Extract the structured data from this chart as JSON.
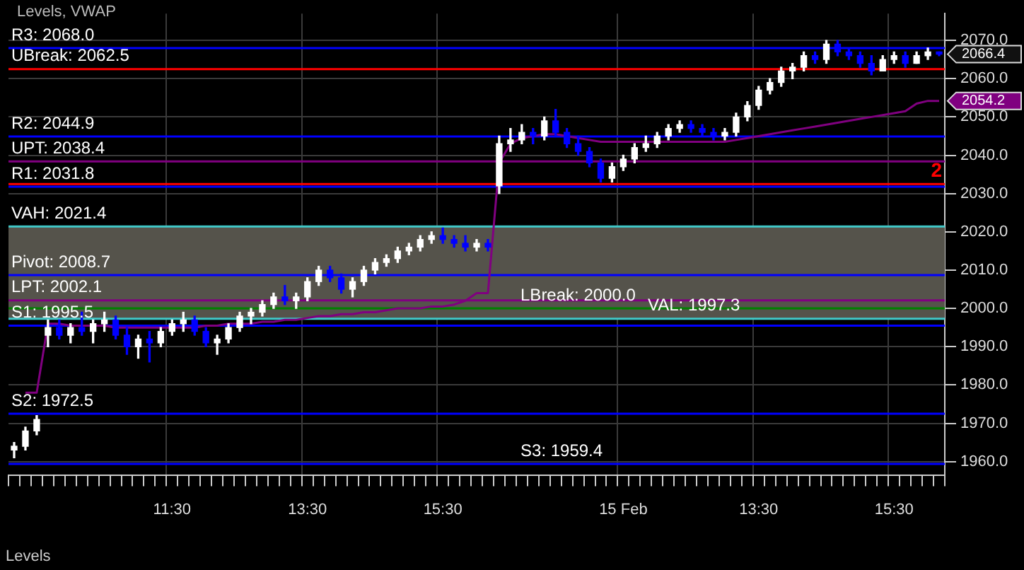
{
  "chart_data": {
    "type": "candlestick",
    "title": "Levels, VWAP",
    "categories": [
      null,
      null,
      null,
      null,
      null,
      null,
      null,
      null,
      null,
      null,
      null,
      null,
      null,
      null,
      "11:30",
      null,
      null,
      null,
      null,
      null,
      null,
      null,
      null,
      null,
      null,
      null,
      "13:30",
      null,
      null,
      null,
      null,
      null,
      null,
      null,
      null,
      null,
      null,
      null,
      "15:30",
      null,
      null,
      null,
      null,
      null,
      null,
      null,
      null,
      null,
      null,
      null,
      null,
      null,
      null,
      null,
      "15 Feb",
      null,
      null,
      null,
      null,
      null,
      null,
      null,
      null,
      null,
      null,
      null,
      "13:30",
      null,
      null,
      null,
      null,
      null,
      null,
      null,
      null,
      null,
      null,
      null,
      "15:30",
      null,
      null,
      null,
      null
    ],
    "ohlc": [
      [
        1963,
        1965,
        1961,
        1964
      ],
      [
        1964,
        1969,
        1963,
        1968
      ],
      [
        1968,
        1972,
        1967,
        1971
      ],
      [
        1993,
        1997,
        1990,
        1995
      ],
      [
        1995,
        1997,
        1992,
        1993
      ],
      [
        1993,
        1996,
        1991,
        1995
      ],
      [
        1995,
        1999,
        1993,
        1994
      ],
      [
        1994,
        1997,
        1991,
        1996
      ],
      [
        1996,
        1999,
        1994,
        1997
      ],
      [
        1997,
        1998,
        1992,
        1993
      ],
      [
        1993,
        1995,
        1988,
        1990
      ],
      [
        1990,
        1993,
        1987,
        1992
      ],
      [
        1992,
        1994,
        1986,
        1991
      ],
      [
        1991,
        1995,
        1990,
        1994
      ],
      [
        1994,
        1997,
        1993,
        1996
      ],
      [
        1996,
        1999,
        1994,
        1997
      ],
      [
        1997,
        1998,
        1993,
        1994
      ],
      [
        1994,
        1995,
        1990,
        1991
      ],
      [
        1991,
        1993,
        1988,
        1992
      ],
      [
        1992,
        1996,
        1991,
        1995
      ],
      [
        1995,
        1999,
        1994,
        1998
      ],
      [
        1998,
        2000,
        1996,
        1999
      ],
      [
        1999,
        2002,
        1998,
        2001
      ],
      [
        2001,
        2004,
        2000,
        2003
      ],
      [
        2003,
        2006,
        2001,
        2002
      ],
      [
        2002,
        2004,
        2000,
        2003
      ],
      [
        2003,
        2008,
        2002,
        2007
      ],
      [
        2007,
        2011,
        2006,
        2010
      ],
      [
        2010,
        2011,
        2007,
        2008
      ],
      [
        2008,
        2009,
        2004,
        2005
      ],
      [
        2005,
        2008,
        2003,
        2007
      ],
      [
        2007,
        2011,
        2006,
        2010
      ],
      [
        2010,
        2013,
        2009,
        2012
      ],
      [
        2012,
        2014,
        2011,
        2013
      ],
      [
        2013,
        2016,
        2012,
        2015
      ],
      [
        2015,
        2017,
        2014,
        2016
      ],
      [
        2016,
        2019,
        2015,
        2018
      ],
      [
        2018,
        2020,
        2017,
        2019
      ],
      [
        2019,
        2021,
        2017,
        2018
      ],
      [
        2018,
        2019,
        2016,
        2017
      ],
      [
        2017,
        2019,
        2015,
        2016
      ],
      [
        2016,
        2018,
        2015,
        2017
      ],
      [
        2017,
        2018,
        2015,
        2016
      ],
      [
        2032,
        2045,
        2030,
        2043
      ],
      [
        2043,
        2047,
        2041,
        2044
      ],
      [
        2044,
        2048,
        2043,
        2046
      ],
      [
        2046,
        2047,
        2043,
        2045
      ],
      [
        2045,
        2050,
        2044,
        2049
      ],
      [
        2049,
        2052,
        2045,
        2046
      ],
      [
        2046,
        2047,
        2042,
        2043
      ],
      [
        2043,
        2045,
        2040,
        2041
      ],
      [
        2041,
        2042,
        2037,
        2038
      ],
      [
        2038,
        2039,
        2033,
        2034
      ],
      [
        2034,
        2038,
        2033,
        2037
      ],
      [
        2037,
        2040,
        2036,
        2039
      ],
      [
        2039,
        2043,
        2038,
        2042
      ],
      [
        2042,
        2045,
        2041,
        2043
      ],
      [
        2043,
        2046,
        2042,
        2045
      ],
      [
        2045,
        2048,
        2044,
        2047
      ],
      [
        2047,
        2049,
        2046,
        2048
      ],
      [
        2048,
        2049,
        2046,
        2047
      ],
      [
        2047,
        2048,
        2045,
        2046
      ],
      [
        2046,
        2047,
        2044,
        2045
      ],
      [
        2045,
        2047,
        2044,
        2046
      ],
      [
        2046,
        2051,
        2045,
        2050
      ],
      [
        2050,
        2054,
        2049,
        2053
      ],
      [
        2053,
        2058,
        2052,
        2057
      ],
      [
        2057,
        2060,
        2056,
        2059
      ],
      [
        2059,
        2063,
        2058,
        2062
      ],
      [
        2062,
        2064,
        2060,
        2063
      ],
      [
        2063,
        2067,
        2062,
        2066
      ],
      [
        2066,
        2067,
        2064,
        2065
      ],
      [
        2065,
        2070,
        2064,
        2069
      ],
      [
        2069,
        2070,
        2066,
        2067
      ],
      [
        2067,
        2068,
        2065,
        2066
      ],
      [
        2066,
        2067,
        2063,
        2064
      ],
      [
        2064,
        2066,
        2061,
        2062
      ],
      [
        2062,
        2066,
        2062,
        2065
      ],
      [
        2065,
        2067,
        2064,
        2066
      ],
      [
        2066,
        2067,
        2063,
        2064
      ],
      [
        2064,
        2067,
        2064,
        2066
      ],
      [
        2066,
        2068,
        2065,
        2067
      ],
      [
        2067,
        2067,
        2066,
        2066.4
      ]
    ],
    "colors": [
      "#ffffff",
      "#ffffff",
      "#ffffff",
      "#ffffff",
      "#0000ff",
      "#ffffff",
      "#0000ff",
      "#ffffff",
      "#ffffff",
      "#0000ff",
      "#0000ff",
      "#ffffff",
      "#0000ff",
      "#ffffff",
      "#ffffff",
      "#ffffff",
      "#0000ff",
      "#0000ff",
      "#ffffff",
      "#ffffff",
      "#ffffff",
      "#ffffff",
      "#ffffff",
      "#ffffff",
      "#0000ff",
      "#ffffff",
      "#ffffff",
      "#ffffff",
      "#0000ff",
      "#0000ff",
      "#ffffff",
      "#ffffff",
      "#ffffff",
      "#ffffff",
      "#ffffff",
      "#ffffff",
      "#ffffff",
      "#ffffff",
      "#0000ff",
      "#0000ff",
      "#0000ff",
      "#ffffff",
      "#0000ff",
      "#ffffff",
      "#ffffff",
      "#ffffff",
      "#0000ff",
      "#ffffff",
      "#0000ff",
      "#0000ff",
      "#0000ff",
      "#0000ff",
      "#0000ff",
      "#ffffff",
      "#ffffff",
      "#ffffff",
      "#ffffff",
      "#ffffff",
      "#ffffff",
      "#ffffff",
      "#0000ff",
      "#0000ff",
      "#0000ff",
      "#ffffff",
      "#ffffff",
      "#ffffff",
      "#ffffff",
      "#ffffff",
      "#ffffff",
      "#ffffff",
      "#ffffff",
      "#0000ff",
      "#ffffff",
      "#0000ff",
      "#0000ff",
      "#0000ff",
      "#0000ff",
      "#ffffff",
      "#ffffff",
      "#0000ff",
      "#ffffff",
      "#ffffff",
      "#0000ff"
    ],
    "series": [
      {
        "type": "line",
        "color": "#800080",
        "values": [
          null,
          1978,
          1978,
          1996,
          1996,
          1995.5,
          1995.5,
          1995.5,
          1995.5,
          1995,
          1995,
          1995,
          1995,
          1995,
          1995,
          1995,
          1995,
          1995.5,
          1995.5,
          1996,
          1996,
          1996,
          1996.5,
          1996.5,
          1997,
          1997,
          1997.5,
          1998,
          1998,
          1998.5,
          1998.5,
          1999,
          1999,
          1999.5,
          2000,
          2000,
          2000,
          2000.5,
          2000.5,
          2001,
          2002,
          2004,
          2004,
          2038,
          2043,
          2044.5,
          2045,
          2045.5,
          2045.5,
          2045,
          2044.5,
          2044,
          2043.5,
          2043.5,
          2043.5,
          2043.5,
          2043.5,
          2043.5,
          2043.5,
          2043.5,
          2043.5,
          2043.5,
          2043.5,
          2043.5,
          2044,
          2044.5,
          2045,
          2045.5,
          2046,
          2046.5,
          2047,
          2047.5,
          2048,
          2048.5,
          2049,
          2049.5,
          2050,
          2050.5,
          2051,
          2051.5,
          2053.5,
          2054.2,
          2054.2
        ]
      }
    ],
    "ylim": [
      1956.5,
      2077
    ],
    "yticks": [
      {
        "value": 1960,
        "label": "1960.0"
      },
      {
        "value": 1970,
        "label": "1970.0"
      },
      {
        "value": 1980,
        "label": "1980.0"
      },
      {
        "value": 1990,
        "label": "1990.0"
      },
      {
        "value": 2000,
        "label": "2000.0"
      },
      {
        "value": 2010,
        "label": "2010.0"
      },
      {
        "value": 2020,
        "label": "2020.0"
      },
      {
        "value": 2030,
        "label": "2030.0"
      },
      {
        "value": 2040,
        "label": "2040.0"
      },
      {
        "value": 2050,
        "label": "2050.0"
      },
      {
        "value": 2060,
        "label": "2060.0"
      },
      {
        "value": 2070,
        "label": "2070.0"
      }
    ],
    "grid": true,
    "bands": [
      {
        "axis": "y",
        "from": 1997.3,
        "to": 2021.4,
        "color": "#55534b"
      }
    ],
    "ref_lines": [
      {
        "axis": "y",
        "value": 2068.0,
        "label": "R3: 2068.0",
        "color": "#0000ff"
      },
      {
        "axis": "y",
        "value": 2062.5,
        "label": "UBreak: 2062.5",
        "color": "#ff0000"
      },
      {
        "axis": "y",
        "value": 2044.9,
        "label": "R2: 2044.9",
        "color": "#0000ff"
      },
      {
        "axis": "y",
        "value": 2038.4,
        "label": "UPT: 2038.4",
        "color": "#800080"
      },
      {
        "axis": "y",
        "value": 2031.8,
        "label": "R1: 2031.8",
        "color": "#0000ff"
      },
      {
        "axis": "y",
        "value": 2032.5,
        "color": "#ff0000"
      },
      {
        "axis": "y",
        "value": 2021.4,
        "label": "VAH: 2021.4",
        "color": "#40c8c8"
      },
      {
        "axis": "y",
        "value": 2008.7,
        "label": "Pivot: 2008.7",
        "color": "#0000ff"
      },
      {
        "axis": "y",
        "value": 2002.1,
        "label": "LPT: 2002.1",
        "color": "#800080"
      },
      {
        "axis": "y",
        "value": 2000.0,
        "label": "LBreak: 2000.0",
        "color": "#008000"
      },
      {
        "axis": "y",
        "value": 1997.3,
        "label": "VAL: 1997.3",
        "color": "#40c8c8"
      },
      {
        "axis": "y",
        "value": 1995.5,
        "label": "S1: 1995.5",
        "color": "#0000ff"
      },
      {
        "axis": "y",
        "value": 1972.5,
        "label": "S2: 1972.5",
        "color": "#0000ff"
      },
      {
        "axis": "y",
        "value": 1959.4,
        "label": "S3: 1959.4",
        "color": "#0000ff"
      }
    ],
    "annotations": [
      "2066.4",
      "2054.2",
      {
        "text": "2",
        "y": 2032.5
      },
      "Levels"
    ]
  }
}
